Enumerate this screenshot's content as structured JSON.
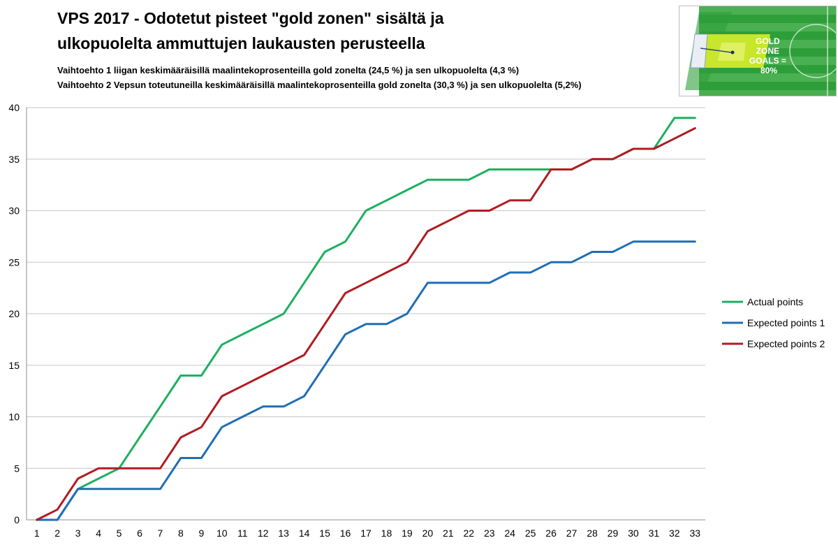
{
  "chart_data": {
    "type": "line",
    "title_lines": [
      "VPS 2017 - Odotetut pisteet  \"gold zonen\" sisältä ja",
      "ulkopuolelta ammuttujen laukausten perusteella"
    ],
    "subtitle_lines": [
      "Vaihtoehto 1 liigan keskimääräisillä  maalintekoprosenteilla  gold zonelta (24,5 %) ja sen ulkopuolelta  (4,3 %)",
      "Vaihtoehto 2 Vepsun toteutuneilla keskimääräisillä  maalintekoprosenteilla  gold zonelta (30,3 %) ja sen ulkopuolelta  (5,2%)"
    ],
    "x": [
      1,
      2,
      3,
      4,
      5,
      6,
      7,
      8,
      9,
      10,
      11,
      12,
      13,
      14,
      15,
      16,
      17,
      18,
      19,
      20,
      21,
      22,
      23,
      24,
      25,
      26,
      27,
      28,
      29,
      30,
      31,
      32,
      33
    ],
    "ylim": [
      0,
      40
    ],
    "yticks": [
      0,
      5,
      10,
      15,
      20,
      25,
      30,
      35,
      40
    ],
    "grid": "horizontal",
    "legend_position": "right",
    "series": [
      {
        "name": "Actual points",
        "color": "#1db060",
        "values": [
          0,
          0,
          3,
          4,
          5,
          8,
          11,
          14,
          14,
          17,
          18,
          19,
          20,
          23,
          26,
          27,
          30,
          31,
          32,
          33,
          33,
          33,
          34,
          34,
          34,
          34,
          34,
          35,
          35,
          36,
          36,
          39,
          39
        ]
      },
      {
        "name": "Expected points 1",
        "color": "#1f6eb5",
        "values": [
          0,
          0,
          3,
          3,
          3,
          3,
          3,
          6,
          6,
          9,
          10,
          11,
          11,
          12,
          15,
          18,
          19,
          19,
          20,
          23,
          23,
          23,
          23,
          24,
          24,
          25,
          25,
          26,
          26,
          27,
          27,
          27,
          27
        ]
      },
      {
        "name": "Expected points 2",
        "color": "#b01c22",
        "values": [
          0,
          1,
          4,
          5,
          5,
          5,
          5,
          8,
          9,
          12,
          13,
          14,
          15,
          16,
          19,
          22,
          23,
          24,
          25,
          28,
          29,
          30,
          30,
          31,
          31,
          34,
          34,
          35,
          35,
          36,
          36,
          37,
          38
        ]
      }
    ]
  },
  "inset": {
    "text_lines": [
      "GOLD",
      "ZONE",
      "GOALS =",
      "80%"
    ],
    "pitch_color": "#2e9e3a",
    "zone_color": "#c8e62c"
  }
}
